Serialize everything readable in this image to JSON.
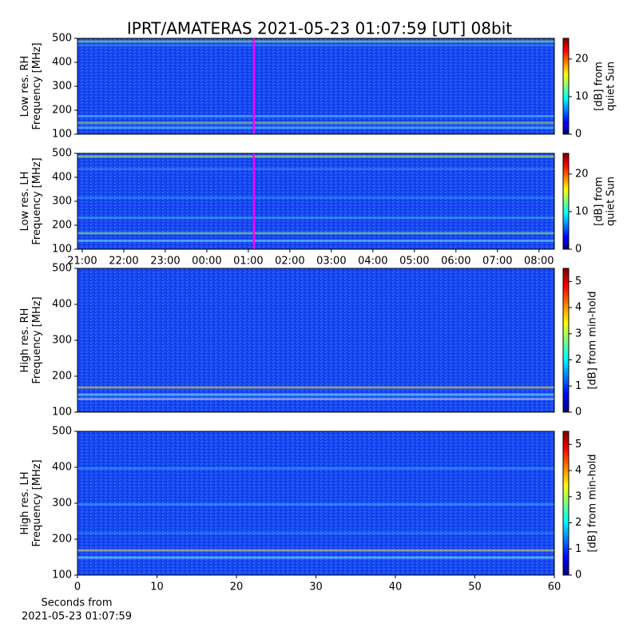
{
  "title": "IPRT/AMATERAS 2021-05-23 01:07:59 [UT]   08bit",
  "xlabel": [
    "Seconds from",
    "2021-05-23 01:07:59"
  ],
  "chart_data": [
    {
      "type": "heatmap",
      "ylabel": [
        "Low res. RH",
        "Frequency [MHz]"
      ],
      "ylim": [
        100,
        500
      ],
      "yticks": [
        100,
        200,
        300,
        400,
        500
      ],
      "xlim": [
        20.885,
        32.37
      ],
      "marker_x": 25.133,
      "marker_color": "#ff00ff",
      "colorbar_label": [
        "[dB] from",
        "quiet Sun"
      ],
      "clim": [
        0,
        25.5
      ],
      "cticks": [
        0,
        10,
        20
      ]
    },
    {
      "type": "heatmap",
      "ylabel": [
        "Low res. LH",
        "Frequency [MHz]"
      ],
      "ylim": [
        100,
        500
      ],
      "yticks": [
        100,
        200,
        300,
        400,
        500
      ],
      "xlim": [
        20.885,
        32.37
      ],
      "marker_x": 25.133,
      "marker_color": "#ff00ff",
      "xticks": [
        {
          "value": 21,
          "label": "21:00"
        },
        {
          "value": 22,
          "label": "22:00"
        },
        {
          "value": 23,
          "label": "23:00"
        },
        {
          "value": 24,
          "label": "00:00"
        },
        {
          "value": 25,
          "label": "01:00"
        },
        {
          "value": 26,
          "label": "02:00"
        },
        {
          "value": 27,
          "label": "03:00"
        },
        {
          "value": 28,
          "label": "04:00"
        },
        {
          "value": 29,
          "label": "05:00"
        },
        {
          "value": 30,
          "label": "06:00"
        },
        {
          "value": 31,
          "label": "07:00"
        },
        {
          "value": 32,
          "label": "08:00"
        }
      ],
      "colorbar_label": [
        "[dB] from",
        "quiet Sun"
      ],
      "clim": [
        0,
        25.5
      ],
      "cticks": [
        0,
        10,
        20
      ]
    },
    {
      "type": "heatmap",
      "ylabel": [
        "High res. RH",
        "Frequency [MHz]"
      ],
      "ylim": [
        100,
        500
      ],
      "yticks": [
        100,
        200,
        300,
        400,
        500
      ],
      "xlim": [
        0,
        60
      ],
      "colorbar_label": [
        "[dB] from min-hold"
      ],
      "clim": [
        0,
        5.5
      ],
      "cticks": [
        0,
        1,
        2,
        3,
        4,
        5
      ]
    },
    {
      "type": "heatmap",
      "ylabel": [
        "High res. LH",
        "Frequency [MHz]"
      ],
      "ylim": [
        100,
        500
      ],
      "yticks": [
        100,
        200,
        300,
        400,
        500
      ],
      "xlim": [
        0,
        60
      ],
      "xticks": [
        0,
        10,
        20,
        30,
        40,
        50,
        60
      ],
      "colorbar_label": [
        "[dB] from min-hold"
      ],
      "clim": [
        0,
        5.5
      ],
      "cticks": [
        0,
        1,
        2,
        3,
        4,
        5
      ]
    }
  ]
}
